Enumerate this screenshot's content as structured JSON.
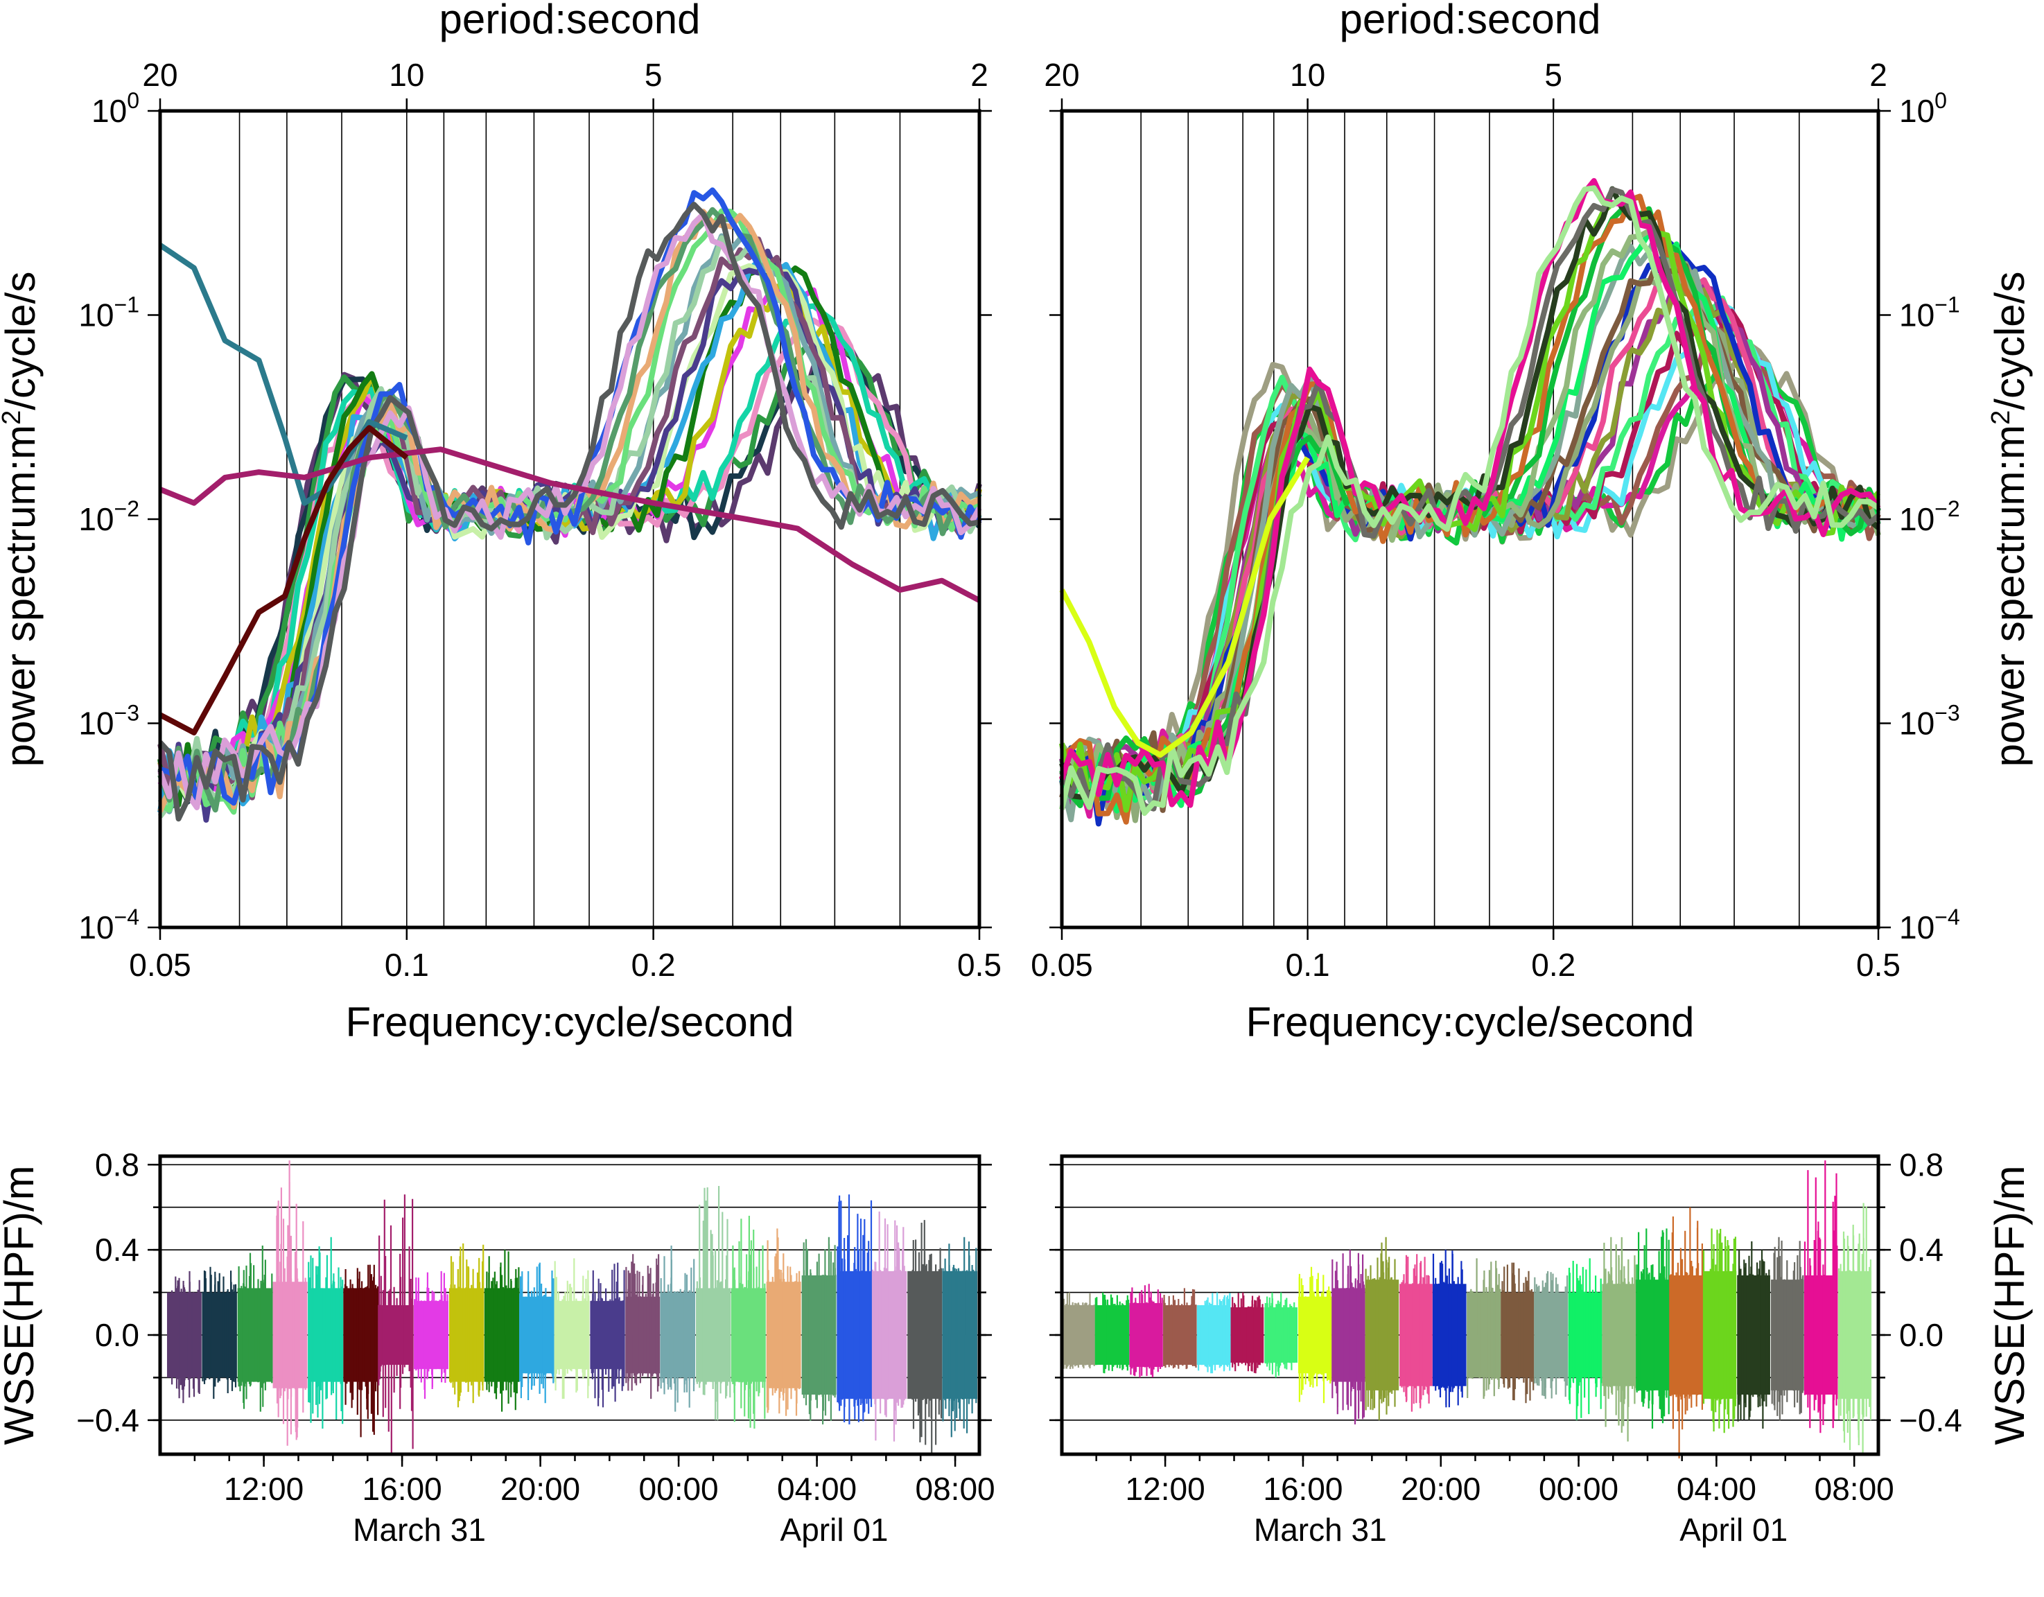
{
  "colors": {
    "left": [
      "#5b3a6e",
      "#17384a",
      "#2e9a43",
      "#ec8fc3",
      "#14d5a7",
      "#5e0707",
      "#a31e6b",
      "#e33ae6",
      "#c2c20d",
      "#137d13",
      "#2ea8e0",
      "#c8f0a8",
      "#4a3c8c",
      "#7e4d74",
      "#74a8ad",
      "#9bd1a5",
      "#6ae07c",
      "#e9aa74",
      "#559d6a",
      "#2757e4",
      "#da9fd8",
      "#565a5a",
      "#2b7a8c"
    ],
    "right": [
      "#9e9e82",
      "#12c83e",
      "#d91a9e",
      "#9c5a4c",
      "#55e6f3",
      "#b01655",
      "#3df07a",
      "#d8ff14",
      "#9e3396",
      "#8a9e33",
      "#eb4b94",
      "#0f2ec2",
      "#8fab79",
      "#7d5a3e",
      "#84a898",
      "#11f066",
      "#92b87c",
      "#0fbe3a",
      "#cc6a28",
      "#6cd61d",
      "#263d1e",
      "#6b6b65",
      "#e60f94",
      "#a3e893"
    ]
  },
  "chart_data": [
    {
      "id": "spectrum-left",
      "type": "line",
      "xlabel": "Frequency:cycle/second",
      "ylabel": "power spectrum:m2/cycle/s",
      "x2label": "period:second",
      "xscale": "log",
      "yscale": "log",
      "xlim": [
        0.05,
        0.5
      ],
      "ylim": [
        0.0001,
        1
      ],
      "xticks": [
        {
          "v": 0.05,
          "t": "0.05"
        },
        {
          "v": 0.1,
          "t": "0.1"
        },
        {
          "v": 0.2,
          "t": "0.2"
        },
        {
          "v": 0.5,
          "t": "0.5"
        }
      ],
      "x2ticks": [
        {
          "v": 20,
          "t": "20"
        },
        {
          "v": 10,
          "t": "10"
        },
        {
          "v": 5,
          "t": "5"
        },
        {
          "v": 2,
          "t": "2"
        }
      ],
      "yticks": [
        {
          "v": 0.0001,
          "b": "10",
          "e": "−4"
        },
        {
          "v": 0.001,
          "b": "10",
          "e": "−3"
        },
        {
          "v": 0.01,
          "b": "10",
          "e": "−2"
        },
        {
          "v": 0.1,
          "b": "10",
          "e": "−1"
        },
        {
          "v": 1,
          "b": "10",
          "e": "0"
        }
      ],
      "grid_x": [
        0.0625,
        0.0714,
        0.0833,
        0.1,
        0.111,
        0.125,
        0.143,
        0.167,
        0.2,
        0.25,
        0.286,
        0.333,
        0.4,
        0.5
      ],
      "peak_shift": 0.0,
      "series_count": 23,
      "special": [
        {
          "color_index": 22,
          "points": [
            [
              0.05,
              0.22
            ],
            [
              0.055,
              0.17
            ],
            [
              0.06,
              0.075
            ],
            [
              0.066,
              0.06
            ],
            [
              0.071,
              0.025
            ],
            [
              0.075,
              0.012
            ],
            [
              0.08,
              0.014
            ],
            [
              0.086,
              0.022
            ],
            [
              0.09,
              0.03
            ],
            [
              0.1,
              0.025
            ]
          ]
        },
        {
          "color_index": 6,
          "points": [
            [
              0.05,
              0.014
            ],
            [
              0.055,
              0.012
            ],
            [
              0.06,
              0.016
            ],
            [
              0.066,
              0.017
            ],
            [
              0.075,
              0.016
            ],
            [
              0.09,
              0.02
            ],
            [
              0.11,
              0.022
            ],
            [
              0.15,
              0.015
            ],
            [
              0.2,
              0.012
            ],
            [
              0.26,
              0.01
            ],
            [
              0.3,
              0.009
            ],
            [
              0.35,
              0.006
            ],
            [
              0.4,
              0.0045
            ],
            [
              0.45,
              0.005
            ],
            [
              0.5,
              0.004
            ]
          ]
        },
        {
          "color_index": 5,
          "points": [
            [
              0.05,
              0.0011
            ],
            [
              0.055,
              0.0009
            ],
            [
              0.06,
              0.0017
            ],
            [
              0.066,
              0.0035
            ],
            [
              0.071,
              0.0042
            ],
            [
              0.075,
              0.008
            ],
            [
              0.08,
              0.015
            ],
            [
              0.085,
              0.022
            ],
            [
              0.09,
              0.028
            ],
            [
              0.1,
              0.02
            ]
          ]
        }
      ]
    },
    {
      "id": "spectrum-right",
      "type": "line",
      "xlabel": "Frequency:cycle/second",
      "ylabel": "power spectrum:m2/cycle/s",
      "x2label": "period:second",
      "xscale": "log",
      "yscale": "log",
      "xlim": [
        0.05,
        0.5
      ],
      "ylim": [
        0.0001,
        1
      ],
      "xticks": [
        {
          "v": 0.05,
          "t": "0.05"
        },
        {
          "v": 0.1,
          "t": "0.1"
        },
        {
          "v": 0.2,
          "t": "0.2"
        },
        {
          "v": 0.5,
          "t": "0.5"
        }
      ],
      "x2ticks": [
        {
          "v": 20,
          "t": "20"
        },
        {
          "v": 10,
          "t": "10"
        },
        {
          "v": 5,
          "t": "5"
        },
        {
          "v": 2,
          "t": "2"
        }
      ],
      "yticks": [
        {
          "v": 0.0001,
          "b": "10",
          "e": "−4"
        },
        {
          "v": 0.001,
          "b": "10",
          "e": "−3"
        },
        {
          "v": 0.01,
          "b": "10",
          "e": "−2"
        },
        {
          "v": 0.1,
          "b": "10",
          "e": "−1"
        },
        {
          "v": 1,
          "b": "10",
          "e": "0"
        }
      ],
      "grid_x": [
        0.0625,
        0.0714,
        0.0833,
        0.0909,
        0.1,
        0.111,
        0.125,
        0.143,
        0.167,
        0.2,
        0.25,
        0.286,
        0.333,
        0.4,
        0.5
      ],
      "peak_shift": 0.04,
      "series_count": 24,
      "special": [
        {
          "color_index": 7,
          "points": [
            [
              0.05,
              0.0045
            ],
            [
              0.054,
              0.0025
            ],
            [
              0.058,
              0.0012
            ],
            [
              0.062,
              0.0008
            ],
            [
              0.066,
              0.0007
            ],
            [
              0.072,
              0.0009
            ],
            [
              0.08,
              0.002
            ],
            [
              0.09,
              0.01
            ],
            [
              0.1,
              0.02
            ]
          ]
        }
      ]
    },
    {
      "id": "wsse-left",
      "type": "area",
      "ylabel": "WSSE(HPF)/m",
      "ylim": [
        -0.56,
        0.84
      ],
      "yticks": [
        {
          "v": -0.4,
          "t": "−0.4"
        },
        {
          "v": 0.0,
          "t": "0.0"
        },
        {
          "v": 0.4,
          "t": "0.4"
        },
        {
          "v": 0.8,
          "t": "0.8"
        }
      ],
      "grid_y": [
        -0.4,
        -0.2,
        0.0,
        0.2,
        0.4,
        0.6,
        0.8
      ],
      "xlim_hours": [
        9.0,
        32.7
      ],
      "xticks_hours": [
        {
          "v": 12,
          "t": "12:00"
        },
        {
          "v": 16,
          "t": "16:00"
        },
        {
          "v": 20,
          "t": "20:00"
        },
        {
          "v": 24,
          "t": "00:00"
        },
        {
          "v": 28,
          "t": "04:00"
        },
        {
          "v": 32,
          "t": "08:00"
        }
      ],
      "date_labels": [
        {
          "v": 16.5,
          "t": "March 31"
        },
        {
          "v": 28.5,
          "t": "April 01"
        }
      ],
      "segment_start_hours": 9.2,
      "segment_hours": 1.02,
      "segment_amplitudes": [
        0.2,
        0.2,
        0.22,
        0.25,
        0.22,
        0.22,
        0.14,
        0.16,
        0.22,
        0.22,
        0.18,
        0.16,
        0.16,
        0.18,
        0.2,
        0.22,
        0.22,
        0.25,
        0.28,
        0.3,
        0.3,
        0.3,
        0.3
      ],
      "segment_peaks": [
        [
          0.3,
          -0.32
        ],
        [
          0.32,
          -0.3
        ],
        [
          0.42,
          -0.36
        ],
        [
          0.82,
          -0.52
        ],
        [
          0.46,
          -0.44
        ],
        [
          0.33,
          -0.48
        ],
        [
          0.66,
          -0.56
        ],
        [
          0.3,
          -0.3
        ],
        [
          0.43,
          -0.34
        ],
        [
          0.4,
          -0.36
        ],
        [
          0.34,
          -0.32
        ],
        [
          0.36,
          -0.3
        ],
        [
          0.34,
          -0.34
        ],
        [
          0.38,
          -0.3
        ],
        [
          0.42,
          -0.36
        ],
        [
          0.7,
          -0.4
        ],
        [
          0.56,
          -0.44
        ],
        [
          0.5,
          -0.38
        ],
        [
          0.46,
          -0.42
        ],
        [
          0.66,
          -0.42
        ],
        [
          0.58,
          -0.5
        ],
        [
          0.54,
          -0.56
        ],
        [
          0.46,
          -0.48
        ]
      ]
    },
    {
      "id": "wsse-right",
      "type": "area",
      "ylabel": "WSSE(HPF)/m",
      "ylim": [
        -0.56,
        0.84
      ],
      "yticks": [
        {
          "v": -0.4,
          "t": "−0.4"
        },
        {
          "v": 0.0,
          "t": "0.0"
        },
        {
          "v": 0.4,
          "t": "0.4"
        },
        {
          "v": 0.8,
          "t": "0.8"
        }
      ],
      "grid_y": [
        -0.4,
        -0.2,
        0.0,
        0.2,
        0.4,
        0.6,
        0.8
      ],
      "xlim_hours": [
        9.0,
        32.7
      ],
      "xticks_hours": [
        {
          "v": 12,
          "t": "12:00"
        },
        {
          "v": 16,
          "t": "16:00"
        },
        {
          "v": 20,
          "t": "20:00"
        },
        {
          "v": 24,
          "t": "00:00"
        },
        {
          "v": 28,
          "t": "04:00"
        },
        {
          "v": 32,
          "t": "08:00"
        }
      ],
      "date_labels": [
        {
          "v": 16.5,
          "t": "March 31"
        },
        {
          "v": 28.5,
          "t": "April 01"
        }
      ],
      "segment_start_hours": 9.0,
      "segment_hours": 0.98,
      "segment_amplitudes": [
        0.14,
        0.14,
        0.15,
        0.14,
        0.14,
        0.13,
        0.13,
        0.18,
        0.22,
        0.26,
        0.24,
        0.24,
        0.2,
        0.2,
        0.2,
        0.2,
        0.24,
        0.26,
        0.28,
        0.3,
        0.28,
        0.26,
        0.28,
        0.3
      ],
      "segment_peaks": [
        [
          0.2,
          -0.16
        ],
        [
          0.2,
          -0.18
        ],
        [
          0.24,
          -0.2
        ],
        [
          0.22,
          -0.16
        ],
        [
          0.2,
          -0.18
        ],
        [
          0.2,
          -0.18
        ],
        [
          0.2,
          -0.2
        ],
        [
          0.32,
          -0.32
        ],
        [
          0.4,
          -0.42
        ],
        [
          0.46,
          -0.4
        ],
        [
          0.38,
          -0.36
        ],
        [
          0.4,
          -0.34
        ],
        [
          0.36,
          -0.3
        ],
        [
          0.34,
          -0.32
        ],
        [
          0.3,
          -0.3
        ],
        [
          0.36,
          -0.4
        ],
        [
          0.46,
          -0.5
        ],
        [
          0.5,
          -0.44
        ],
        [
          0.6,
          -0.58
        ],
        [
          0.5,
          -0.46
        ],
        [
          0.44,
          -0.44
        ],
        [
          0.46,
          -0.4
        ],
        [
          0.82,
          -0.46
        ],
        [
          0.62,
          -0.56
        ]
      ]
    }
  ]
}
